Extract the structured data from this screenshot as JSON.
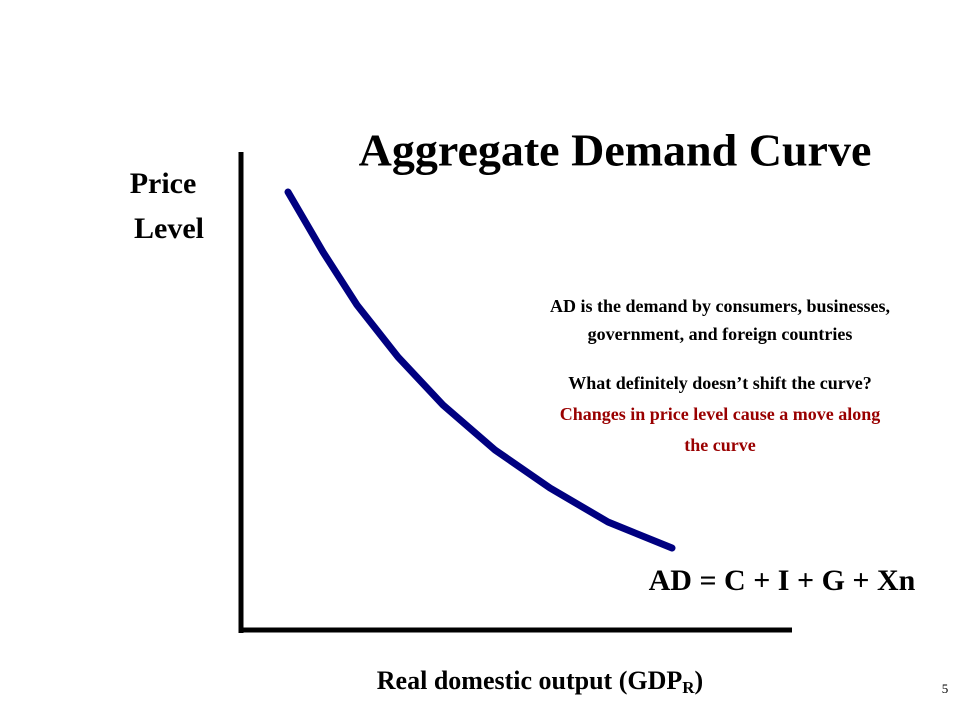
{
  "title": "Aggregate Demand Curve",
  "y_axis_label": {
    "lines": [
      "Price",
      "Level"
    ]
  },
  "x_axis_label": {
    "text": "Real domestic output (GDP",
    "subscript": "R",
    "closing": ")"
  },
  "definition": {
    "lines": [
      "AD is the demand by consumers, businesses,",
      "government, and foreign countries"
    ]
  },
  "question": "What definitely doesn’t shift the curve?",
  "answer": {
    "lines": [
      "Changes in price level cause a move along",
      "the curve"
    ]
  },
  "formula": "AD = C + I + G + Xn",
  "page_number": "5"
}
